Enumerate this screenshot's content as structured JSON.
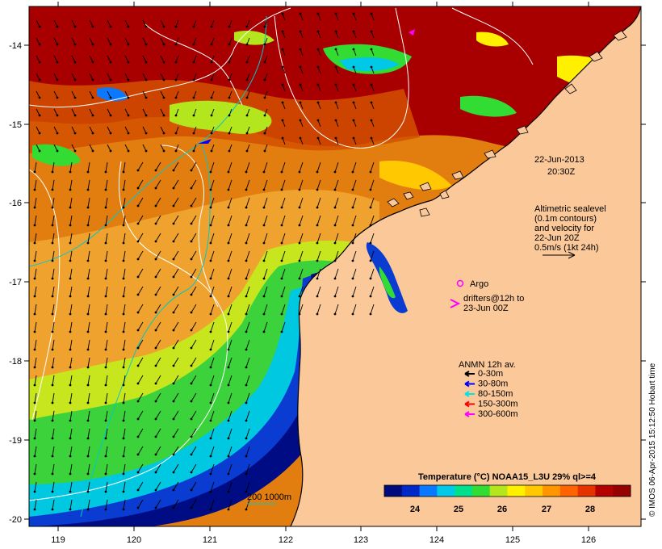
{
  "map": {
    "lon_ticks": [
      "119",
      "120",
      "121",
      "122",
      "123",
      "124",
      "125",
      "126"
    ],
    "lat_ticks": [
      "-14",
      "-15",
      "-16",
      "-17",
      "-18",
      "-19",
      "-20"
    ]
  },
  "annotations": {
    "datetime_line1": "22-Jun-2013",
    "datetime_line2": "20:30Z",
    "altimetry_lines": [
      "Altimetric sealevel",
      "(0.1m contours)",
      "and velocity for",
      "22-Jun 20Z",
      "0.5m/s (1kt 24h)"
    ],
    "argo_label": "Argo",
    "drifters_line1": "drifters@12h to",
    "drifters_line2": "23-Jun 00Z",
    "isobath_label": "200  1000m"
  },
  "legend": {
    "title": "ANMN 12h av.",
    "items": [
      {
        "label": "0-30m",
        "color": "#000000"
      },
      {
        "label": "30-80m",
        "color": "#0000ff"
      },
      {
        "label": "80-150m",
        "color": "#00e5e5"
      },
      {
        "label": "150-300m",
        "color": "#ff0000"
      },
      {
        "label": "300-600m",
        "color": "#ff00ff"
      }
    ]
  },
  "colorbar": {
    "title": "Temperature (°C) NOAA15_L3U 29% ql>=4",
    "ticks": [
      "24",
      "25",
      "26",
      "27",
      "28"
    ],
    "colors": [
      "#000a7a",
      "#0028c8",
      "#0a78ff",
      "#00c8e6",
      "#00e08c",
      "#32dc32",
      "#b4e61e",
      "#fff000",
      "#ffc800",
      "#ff9600",
      "#ff6400",
      "#e63200",
      "#b40000",
      "#960000"
    ]
  },
  "credit": "© IMOS 06-Apr-2015 15:12:50 Hobart time",
  "colors": {
    "land": "#fbc89a",
    "warm": "#a80000",
    "mid": "#e07800",
    "orange": "#f0a030",
    "green": "#40d040",
    "cyan": "#00c8e8",
    "blue": "#0a28c8",
    "deep": "#000a80"
  }
}
